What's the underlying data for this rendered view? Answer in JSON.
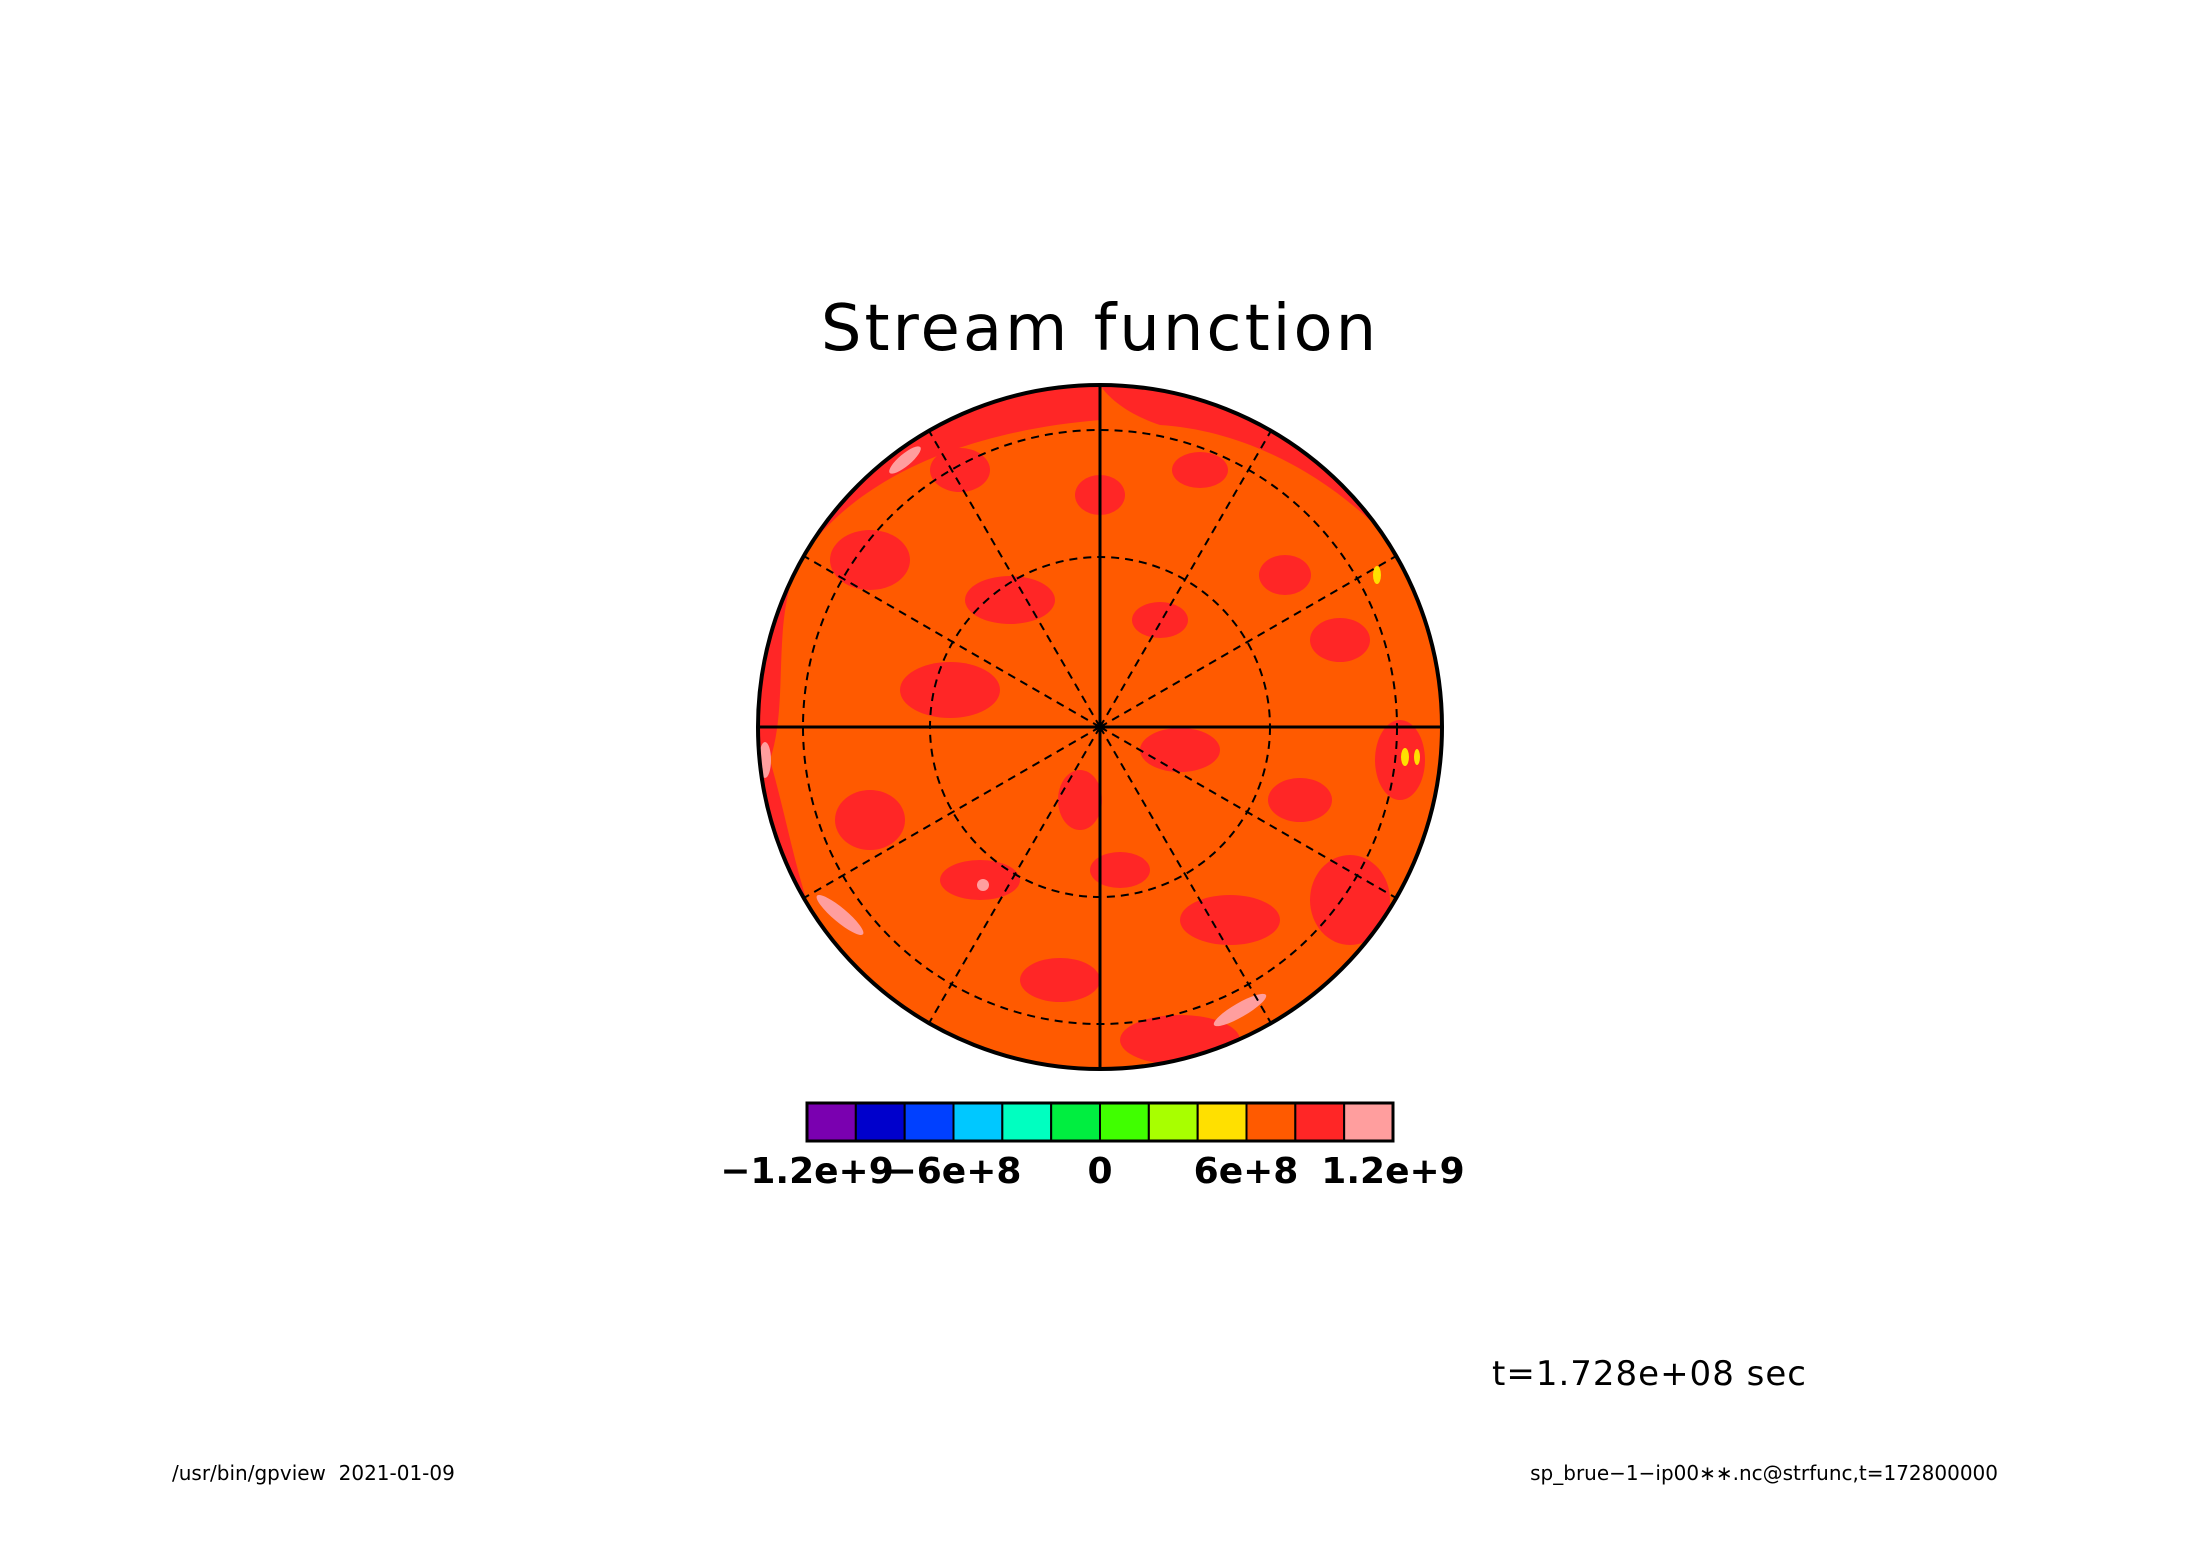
{
  "title": "Stream function",
  "time_label": "t=1.728e+08 sec",
  "footer_left": "/usr/bin/gpview  2021-01-09",
  "footer_right": "sp_brue−1−ip00∗∗.nc@strfunc,t=172800000",
  "colorbar": {
    "colors": [
      "#7a00b0",
      "#0000cc",
      "#0040ff",
      "#00c8ff",
      "#00ffc0",
      "#00ee40",
      "#40ff00",
      "#a8ff00",
      "#ffe000",
      "#ff5a00",
      "#ff2626",
      "#ff9e9e"
    ],
    "tick_labels": [
      "−1.2e+9",
      "−6e+8",
      "0",
      "6e+8",
      "1.2e+9"
    ],
    "tick_values": [
      -1200000000,
      -600000000,
      0,
      600000000,
      1200000000
    ],
    "range": [
      -1200000000,
      1200000000
    ]
  },
  "chart_data": {
    "type": "heatmap",
    "projection": "polar stereographic",
    "title": "Stream function",
    "variable": "strfunc",
    "time": "t=1.728e+08 sec",
    "dominant_levels": [
      {
        "range": [
          600000000,
          800000000
        ],
        "color": "#ff5a00",
        "role": "background"
      },
      {
        "range": [
          800000000,
          1000000000
        ],
        "color": "#ff2626",
        "role": "patches"
      },
      {
        "range": [
          1000000000,
          1200000000
        ],
        "color": "#ff9e9e",
        "role": "isolated streaks near rim"
      },
      {
        "range": [
          400000000,
          600000000
        ],
        "color": "#ffe000",
        "role": "tiny spots near right rim"
      }
    ],
    "grid": {
      "latitude_circles": 2,
      "longitude_spokes": 12,
      "style": "dashed"
    }
  }
}
